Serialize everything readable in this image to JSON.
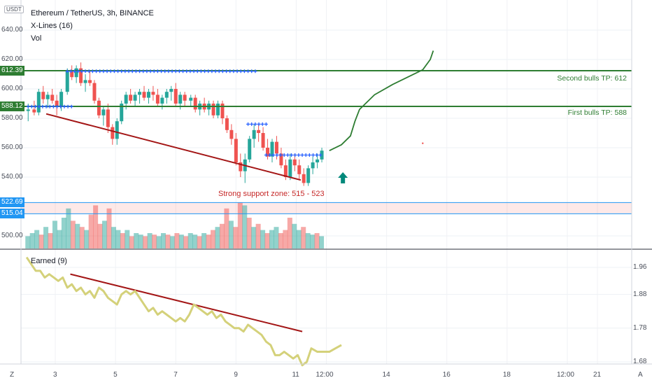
{
  "header": {
    "symbol_line": "Ethereum / TetherUS, 3h, BINANCE",
    "indicator1": "X-Lines (16)",
    "indicator2": "Vol",
    "currency_badge": "USDT",
    "sub_indicator": "Earned (9)"
  },
  "price_axis": {
    "ticks": [
      "640.00",
      "620.00",
      "600.00",
      "580.00",
      "560.00",
      "540.00",
      "500.00"
    ],
    "tags": [
      {
        "value": "612.39",
        "color": "#2e7d32"
      },
      {
        "value": "588.12",
        "color": "#2e7d32"
      },
      {
        "value": "522.69",
        "color": "#2196f3"
      },
      {
        "value": "515.04",
        "color": "#2196f3"
      }
    ]
  },
  "sub_axis": {
    "ticks": [
      "1.96",
      "1.88",
      "1.78",
      "1.68"
    ]
  },
  "time_axis": {
    "ticks": [
      "3",
      "5",
      "7",
      "9",
      "11",
      "12:00",
      "14",
      "16",
      "18",
      "12:00",
      "21"
    ],
    "left_corner": "Z",
    "right_corner": "A"
  },
  "annotations": {
    "second_tp": "Second bulls TP: 612",
    "first_tp": "First bulls TP: 588",
    "support": "Strong support zone: 515 - 523"
  },
  "colors": {
    "up": "#26a69a",
    "down": "#ef5350",
    "trend": "#a31515",
    "tp_line": "#2e7d32",
    "support_line": "#2196f3",
    "xlines": "#2962ff",
    "earned": "#d4d17a",
    "forecast": "#2e7d32",
    "arrow": "#00897b"
  },
  "chart_data": {
    "type": "candlestick",
    "price_range": [
      495,
      650
    ],
    "sub_range": [
      1.66,
      2.0
    ],
    "x_range": [
      2,
      22
    ],
    "candles": [
      [
        2.1,
        585,
        590,
        578,
        586
      ],
      [
        2.3,
        586,
        592,
        582,
        584
      ],
      [
        2.45,
        584,
        600,
        582,
        598
      ],
      [
        2.6,
        598,
        602,
        590,
        593
      ],
      [
        2.75,
        593,
        598,
        587,
        596
      ],
      [
        2.9,
        596,
        600,
        590,
        592
      ],
      [
        3.05,
        592,
        596,
        582,
        588
      ],
      [
        3.2,
        588,
        600,
        585,
        598
      ],
      [
        3.4,
        598,
        614,
        596,
        612
      ],
      [
        3.55,
        612,
        616,
        606,
        608
      ],
      [
        3.7,
        608,
        616,
        604,
        614
      ],
      [
        3.85,
        614,
        618,
        602,
        604
      ],
      [
        4.0,
        604,
        610,
        598,
        606
      ],
      [
        4.15,
        606,
        612,
        602,
        604
      ],
      [
        4.3,
        604,
        606,
        590,
        592
      ],
      [
        4.45,
        592,
        594,
        580,
        582
      ],
      [
        4.6,
        582,
        588,
        575,
        586
      ],
      [
        4.75,
        586,
        590,
        570,
        574
      ],
      [
        4.9,
        574,
        576,
        562,
        566
      ],
      [
        5.05,
        566,
        580,
        562,
        578
      ],
      [
        5.2,
        578,
        592,
        576,
        590
      ],
      [
        5.35,
        590,
        598,
        586,
        596
      ],
      [
        5.5,
        596,
        600,
        590,
        592
      ],
      [
        5.65,
        592,
        598,
        588,
        596
      ],
      [
        5.8,
        596,
        600,
        590,
        598
      ],
      [
        5.95,
        598,
        602,
        592,
        594
      ],
      [
        6.1,
        594,
        600,
        590,
        598
      ],
      [
        6.25,
        598,
        602,
        592,
        596
      ],
      [
        6.4,
        596,
        600,
        588,
        590
      ],
      [
        6.55,
        590,
        596,
        586,
        594
      ],
      [
        6.7,
        594,
        600,
        590,
        598
      ],
      [
        6.85,
        598,
        602,
        592,
        600
      ],
      [
        7.0,
        600,
        604,
        588,
        590
      ],
      [
        7.15,
        590,
        598,
        586,
        596
      ],
      [
        7.3,
        596,
        598,
        588,
        592
      ],
      [
        7.5,
        592,
        596,
        588,
        594
      ],
      [
        7.65,
        594,
        596,
        584,
        586
      ],
      [
        7.8,
        586,
        592,
        582,
        590
      ],
      [
        7.95,
        590,
        594,
        584,
        586
      ],
      [
        8.1,
        586,
        592,
        582,
        590
      ],
      [
        8.25,
        590,
        592,
        580,
        582
      ],
      [
        8.4,
        582,
        592,
        580,
        590
      ],
      [
        8.55,
        590,
        592,
        576,
        580
      ],
      [
        8.7,
        580,
        582,
        570,
        572
      ],
      [
        8.85,
        572,
        576,
        562,
        566
      ],
      [
        9.0,
        566,
        570,
        548,
        550
      ],
      [
        9.15,
        550,
        556,
        540,
        544
      ],
      [
        9.3,
        544,
        556,
        536,
        552
      ],
      [
        9.45,
        552,
        568,
        550,
        566
      ],
      [
        9.6,
        566,
        576,
        560,
        572
      ],
      [
        9.75,
        572,
        576,
        564,
        570
      ],
      [
        9.9,
        570,
        574,
        558,
        560
      ],
      [
        10.05,
        560,
        566,
        552,
        554
      ],
      [
        10.2,
        554,
        566,
        550,
        564
      ],
      [
        10.35,
        564,
        568,
        552,
        556
      ],
      [
        10.5,
        556,
        560,
        546,
        548
      ],
      [
        10.65,
        548,
        552,
        538,
        540
      ],
      [
        10.8,
        540,
        556,
        538,
        552
      ],
      [
        10.95,
        552,
        556,
        544,
        548
      ],
      [
        11.1,
        548,
        552,
        538,
        542
      ],
      [
        11.25,
        542,
        546,
        534,
        536
      ],
      [
        11.4,
        536,
        548,
        534,
        546
      ],
      [
        11.55,
        546,
        554,
        542,
        550
      ],
      [
        11.7,
        550,
        556,
        546,
        552
      ],
      [
        11.85,
        552,
        560,
        550,
        558
      ]
    ],
    "volume": [
      [
        2.1,
        8,
        1
      ],
      [
        2.25,
        10,
        1
      ],
      [
        2.4,
        12,
        1
      ],
      [
        2.55,
        9,
        0
      ],
      [
        2.7,
        14,
        1
      ],
      [
        2.85,
        10,
        0
      ],
      [
        3.0,
        18,
        1
      ],
      [
        3.15,
        12,
        1
      ],
      [
        3.3,
        20,
        1
      ],
      [
        3.45,
        26,
        1
      ],
      [
        3.6,
        18,
        0
      ],
      [
        3.75,
        16,
        1
      ],
      [
        3.9,
        14,
        0
      ],
      [
        4.05,
        12,
        1
      ],
      [
        4.2,
        22,
        0
      ],
      [
        4.35,
        28,
        0
      ],
      [
        4.5,
        16,
        0
      ],
      [
        4.65,
        18,
        1
      ],
      [
        4.8,
        26,
        0
      ],
      [
        4.95,
        14,
        1
      ],
      [
        5.1,
        12,
        1
      ],
      [
        5.25,
        10,
        0
      ],
      [
        5.4,
        12,
        1
      ],
      [
        5.55,
        8,
        0
      ],
      [
        5.7,
        10,
        1
      ],
      [
        5.85,
        9,
        1
      ],
      [
        6.0,
        8,
        0
      ],
      [
        6.15,
        10,
        1
      ],
      [
        6.3,
        9,
        0
      ],
      [
        6.45,
        8,
        1
      ],
      [
        6.6,
        10,
        1
      ],
      [
        6.75,
        9,
        0
      ],
      [
        6.9,
        8,
        1
      ],
      [
        7.05,
        10,
        0
      ],
      [
        7.2,
        9,
        1
      ],
      [
        7.35,
        8,
        0
      ],
      [
        7.5,
        10,
        1
      ],
      [
        7.65,
        9,
        1
      ],
      [
        7.8,
        8,
        0
      ],
      [
        7.95,
        10,
        1
      ],
      [
        8.1,
        9,
        0
      ],
      [
        8.25,
        12,
        0
      ],
      [
        8.4,
        14,
        1
      ],
      [
        8.55,
        16,
        0
      ],
      [
        8.7,
        26,
        0
      ],
      [
        8.85,
        18,
        1
      ],
      [
        9.0,
        14,
        0
      ],
      [
        9.15,
        30,
        0
      ],
      [
        9.3,
        28,
        1
      ],
      [
        9.45,
        20,
        0
      ],
      [
        9.6,
        14,
        1
      ],
      [
        9.75,
        16,
        0
      ],
      [
        9.9,
        12,
        1
      ],
      [
        10.05,
        10,
        0
      ],
      [
        10.2,
        12,
        1
      ],
      [
        10.35,
        14,
        1
      ],
      [
        10.5,
        10,
        0
      ],
      [
        10.65,
        12,
        0
      ],
      [
        10.8,
        20,
        0
      ],
      [
        10.95,
        16,
        1
      ],
      [
        11.1,
        12,
        1
      ],
      [
        11.25,
        14,
        0
      ],
      [
        11.4,
        10,
        1
      ],
      [
        11.55,
        9,
        1
      ],
      [
        11.7,
        10,
        0
      ],
      [
        11.85,
        8,
        1
      ]
    ],
    "earned": [
      [
        2.05,
        1.99
      ],
      [
        2.2,
        1.97
      ],
      [
        2.35,
        1.95
      ],
      [
        2.5,
        1.95
      ],
      [
        2.65,
        1.93
      ],
      [
        2.8,
        1.94
      ],
      [
        2.95,
        1.93
      ],
      [
        3.1,
        1.92
      ],
      [
        3.25,
        1.93
      ],
      [
        3.4,
        1.9
      ],
      [
        3.55,
        1.91
      ],
      [
        3.7,
        1.89
      ],
      [
        3.85,
        1.9
      ],
      [
        4.0,
        1.88
      ],
      [
        4.15,
        1.89
      ],
      [
        4.3,
        1.87
      ],
      [
        4.45,
        1.9
      ],
      [
        4.6,
        1.89
      ],
      [
        4.75,
        1.87
      ],
      [
        4.9,
        1.86
      ],
      [
        5.05,
        1.85
      ],
      [
        5.2,
        1.88
      ],
      [
        5.35,
        1.89
      ],
      [
        5.5,
        1.88
      ],
      [
        5.65,
        1.89
      ],
      [
        5.8,
        1.87
      ],
      [
        5.95,
        1.85
      ],
      [
        6.1,
        1.83
      ],
      [
        6.25,
        1.84
      ],
      [
        6.4,
        1.82
      ],
      [
        6.55,
        1.83
      ],
      [
        6.7,
        1.82
      ],
      [
        6.85,
        1.81
      ],
      [
        7.0,
        1.8
      ],
      [
        7.15,
        1.81
      ],
      [
        7.3,
        1.8
      ],
      [
        7.45,
        1.82
      ],
      [
        7.6,
        1.85
      ],
      [
        7.75,
        1.84
      ],
      [
        7.9,
        1.83
      ],
      [
        8.05,
        1.82
      ],
      [
        8.2,
        1.83
      ],
      [
        8.35,
        1.81
      ],
      [
        8.5,
        1.82
      ],
      [
        8.65,
        1.8
      ],
      [
        8.8,
        1.79
      ],
      [
        8.95,
        1.78
      ],
      [
        9.1,
        1.78
      ],
      [
        9.25,
        1.77
      ],
      [
        9.4,
        1.79
      ],
      [
        9.55,
        1.78
      ],
      [
        9.7,
        1.77
      ],
      [
        9.85,
        1.76
      ],
      [
        10.0,
        1.74
      ],
      [
        10.15,
        1.73
      ],
      [
        10.3,
        1.7
      ],
      [
        10.45,
        1.7
      ],
      [
        10.6,
        1.71
      ],
      [
        10.75,
        1.7
      ],
      [
        10.9,
        1.69
      ],
      [
        11.05,
        1.7
      ],
      [
        11.2,
        1.67
      ],
      [
        11.35,
        1.68
      ],
      [
        11.5,
        1.72
      ],
      [
        11.7,
        1.71
      ],
      [
        11.9,
        1.71
      ],
      [
        12.1,
        1.71
      ],
      [
        12.3,
        1.72
      ],
      [
        12.5,
        1.73
      ]
    ],
    "trendlines": {
      "price": [
        [
          2.7,
          583
        ],
        [
          11.15,
          538
        ]
      ],
      "earned": [
        [
          3.5,
          1.94
        ],
        [
          11.2,
          1.77
        ]
      ]
    },
    "levels": {
      "second_tp": 612.39,
      "first_tp": 588.12,
      "support_high": 522.69,
      "support_low": 515.04
    },
    "xlines": {
      "upper": {
        "from": 3.4,
        "to": 9.7,
        "y": 612
      },
      "left": {
        "from": 2.1,
        "to": 3.6,
        "y": 588
      },
      "mid": {
        "from": 9.4,
        "to": 10.05,
        "y": 576
      },
      "lower": {
        "from": 10.0,
        "to": 11.85,
        "y": 555
      }
    },
    "forecast_path": [
      [
        12.1,
        558
      ],
      [
        12.5,
        562
      ],
      [
        12.8,
        568
      ],
      [
        12.95,
        578
      ],
      [
        13.1,
        586
      ],
      [
        13.6,
        596
      ],
      [
        14.2,
        603
      ],
      [
        14.7,
        608
      ],
      [
        15.2,
        613
      ],
      [
        15.45,
        620
      ],
      [
        15.55,
        626
      ]
    ]
  }
}
